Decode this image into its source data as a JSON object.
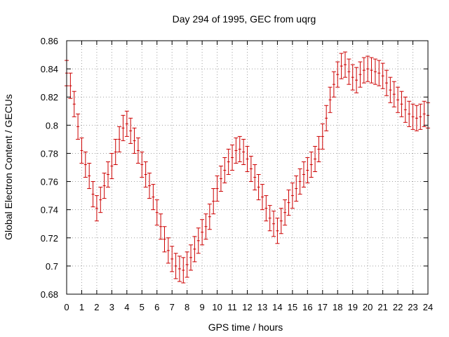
{
  "chart_data": {
    "type": "scatter",
    "title": "Day 294 of 1995, GEC from uqrg",
    "xlabel": "GPS time / hours",
    "ylabel": "Global Electron Content / GECUs",
    "xlim": [
      0,
      24
    ],
    "ylim": [
      0.68,
      0.86
    ],
    "xticks": [
      0,
      1,
      2,
      3,
      4,
      5,
      6,
      7,
      8,
      9,
      10,
      11,
      12,
      13,
      14,
      15,
      16,
      17,
      18,
      19,
      20,
      21,
      22,
      23,
      24
    ],
    "yticks": [
      0.68,
      0.7,
      0.72,
      0.74,
      0.76,
      0.78,
      0.8,
      0.82,
      0.84,
      0.86
    ],
    "ytick_labels": [
      "0.68",
      "0.7",
      "0.72",
      "0.74",
      "0.76",
      "0.78",
      "0.8",
      "0.82",
      "0.84",
      "0.86"
    ],
    "grid": true,
    "error_bar": 0.009,
    "color": "#cc0000",
    "series": [
      {
        "name": "GEC",
        "x": [
          0.0,
          0.25,
          0.5,
          0.75,
          1.0,
          1.25,
          1.5,
          1.75,
          2.0,
          2.25,
          2.5,
          2.75,
          3.0,
          3.25,
          3.5,
          3.75,
          4.0,
          4.25,
          4.5,
          4.75,
          5.0,
          5.25,
          5.5,
          5.75,
          6.0,
          6.25,
          6.5,
          6.75,
          7.0,
          7.25,
          7.5,
          7.75,
          8.0,
          8.25,
          8.5,
          8.75,
          9.0,
          9.25,
          9.5,
          9.75,
          10.0,
          10.25,
          10.5,
          10.75,
          11.0,
          11.25,
          11.5,
          11.75,
          12.0,
          12.25,
          12.5,
          12.75,
          13.0,
          13.25,
          13.5,
          13.75,
          14.0,
          14.25,
          14.5,
          14.75,
          15.0,
          15.25,
          15.5,
          15.75,
          16.0,
          16.25,
          16.5,
          16.75,
          17.0,
          17.25,
          17.5,
          17.75,
          18.0,
          18.25,
          18.5,
          18.75,
          19.0,
          19.25,
          19.5,
          19.75,
          20.0,
          20.25,
          20.5,
          20.75,
          21.0,
          21.25,
          21.5,
          21.75,
          22.0,
          22.25,
          22.5,
          22.75,
          23.0,
          23.25,
          23.5,
          23.75,
          24.0
        ],
        "y": [
          0.837,
          0.828,
          0.815,
          0.799,
          0.782,
          0.772,
          0.764,
          0.751,
          0.741,
          0.747,
          0.757,
          0.765,
          0.771,
          0.781,
          0.79,
          0.798,
          0.801,
          0.796,
          0.789,
          0.782,
          0.772,
          0.765,
          0.757,
          0.749,
          0.738,
          0.728,
          0.719,
          0.711,
          0.705,
          0.7,
          0.698,
          0.697,
          0.701,
          0.706,
          0.712,
          0.718,
          0.724,
          0.728,
          0.735,
          0.746,
          0.755,
          0.762,
          0.768,
          0.774,
          0.777,
          0.782,
          0.783,
          0.781,
          0.776,
          0.769,
          0.763,
          0.756,
          0.749,
          0.741,
          0.734,
          0.73,
          0.725,
          0.732,
          0.738,
          0.745,
          0.75,
          0.755,
          0.76,
          0.765,
          0.768,
          0.772,
          0.776,
          0.783,
          0.792,
          0.805,
          0.818,
          0.829,
          0.836,
          0.842,
          0.843,
          0.838,
          0.834,
          0.832,
          0.836,
          0.839,
          0.84,
          0.839,
          0.838,
          0.837,
          0.835,
          0.83,
          0.825,
          0.822,
          0.818,
          0.815,
          0.811,
          0.808,
          0.806,
          0.805,
          0.806,
          0.808,
          0.807
        ]
      }
    ]
  }
}
